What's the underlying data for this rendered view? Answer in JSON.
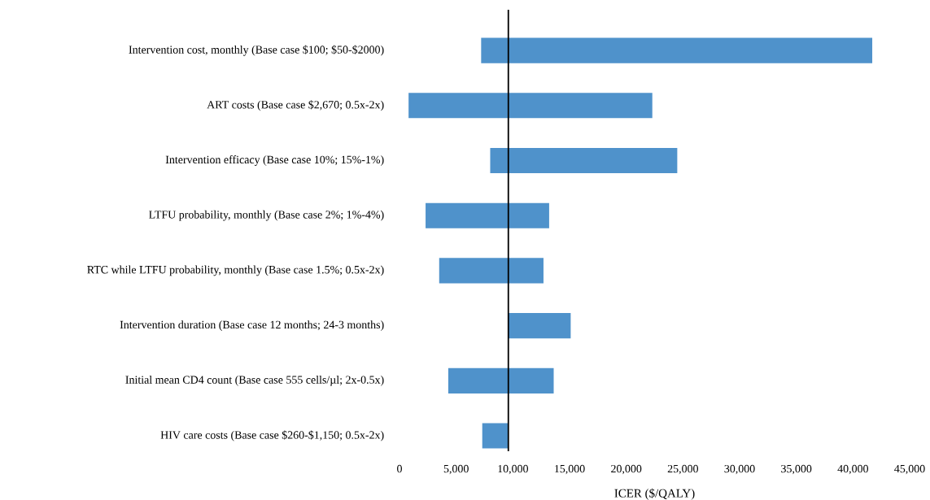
{
  "chart_data": {
    "type": "bar",
    "orientation": "horizontal",
    "xlabel": "ICER ($/QALY)",
    "categories": [
      "Intervention cost, monthly (Base case $100; $50-$2000)",
      "ART costs (Base case $2,670; 0.5x-2x)",
      "Intervention efficacy (Base case 10%; 15%-1%)",
      "LTFU probability, monthly (Base case 2%; 1%-4%)",
      "RTC while LTFU probability, monthly (Base case 1.5%; 0.5x-2x)",
      "Intervention duration (Base case 12 months; 24-3 months)",
      "Initial mean CD4 count (Base case 555 cells/µl; 2x-0.5x)",
      "HIV care costs (Base case $260-$1,150; 0.5x-2x)"
    ],
    "base": [
      7200,
      800,
      8000,
      2300,
      3500,
      9600,
      4300,
      7300
    ],
    "values": [
      34500,
      21500,
      16500,
      10900,
      9200,
      5500,
      9300,
      2300
    ],
    "color": "#4f92cb",
    "xlim": [
      0,
      45000
    ],
    "xticks": [
      0,
      {
        "value": 5000,
        "label": "5,000"
      },
      {
        "value": 10000,
        "label": "10,000"
      },
      {
        "value": 15000,
        "label": "15,000"
      },
      {
        "value": 20000,
        "label": "20,000"
      },
      {
        "value": 25000,
        "label": "25,000"
      },
      {
        "value": 30000,
        "label": "30,000"
      },
      {
        "value": 35000,
        "label": "35,000"
      },
      {
        "value": 40000,
        "label": "40,000"
      },
      {
        "value": 45000,
        "label": "45,000"
      }
    ],
    "ref_lines": [
      {
        "axis": "x",
        "value": 9600,
        "color": "#000000"
      }
    ]
  }
}
